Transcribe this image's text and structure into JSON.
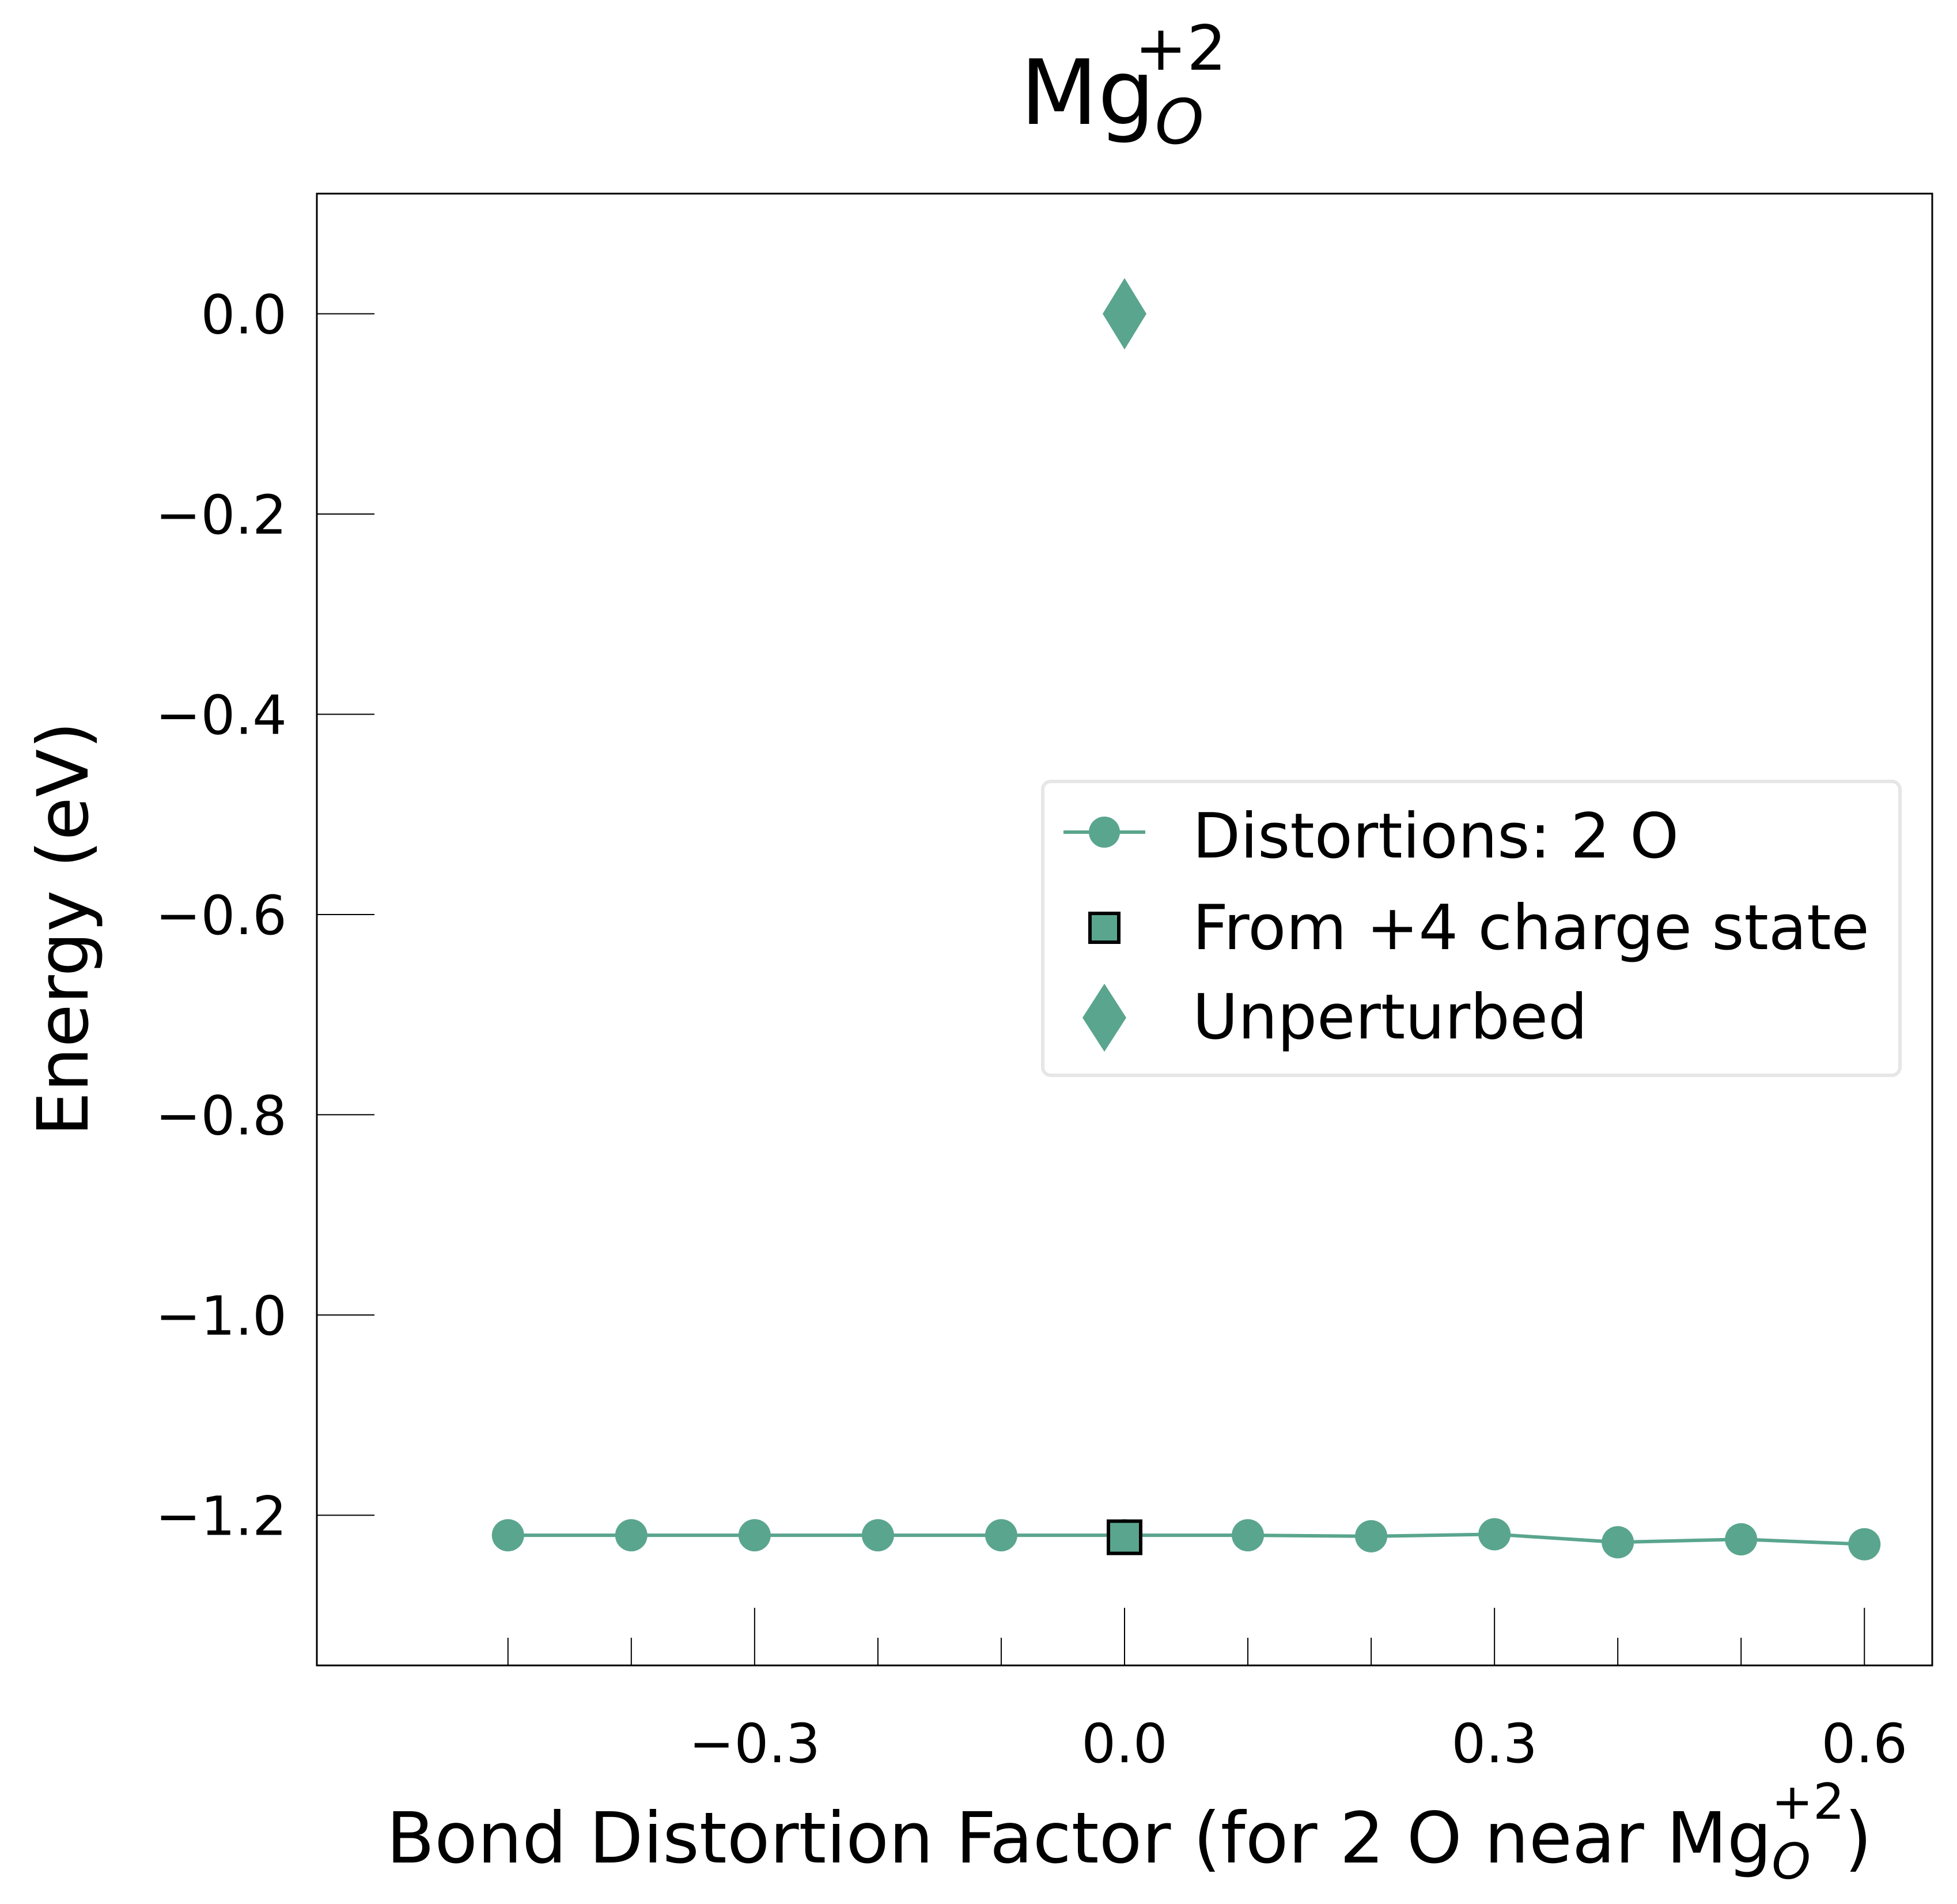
{
  "colors": {
    "series": "#5aa58e",
    "axis": "#000000",
    "legend_border": "#e6e6e6",
    "background": "#ffffff"
  },
  "title": {
    "base": "Mg",
    "sub": "O",
    "sup": "+2"
  },
  "xlabel": {
    "prefix": "Bond Distortion Factor (for 2 O near Mg",
    "sub": "O",
    "sup": "+2",
    "suffix": ")"
  },
  "ylabel": "Energy (eV)",
  "legend": {
    "placement": "center-right",
    "entries": [
      {
        "label": "Distortions: 2 O",
        "marker": "circle-line"
      },
      {
        "label": "From +4 charge state",
        "marker": "square"
      },
      {
        "label": "Unperturbed",
        "marker": "diamond"
      }
    ]
  },
  "chart_data": {
    "type": "line",
    "xlim": [
      -0.655,
      0.655
    ],
    "ylim": [
      -1.35,
      0.12
    ],
    "xticks": [
      -0.3,
      0.0,
      0.3,
      0.6
    ],
    "xtick_labels": [
      "−0.3",
      "0.0",
      "0.3",
      "0.6"
    ],
    "xminor": [
      -0.5,
      -0.4,
      -0.2,
      -0.1,
      0.1,
      0.2,
      0.4,
      0.5
    ],
    "yticks": [
      0.0,
      -0.2,
      -0.4,
      -0.6,
      -0.8,
      -1.0,
      -1.2
    ],
    "ytick_labels": [
      "0.0",
      "−0.2",
      "−0.4",
      "−0.6",
      "−0.8",
      "−1.0",
      "−1.2"
    ],
    "grid": false,
    "series": [
      {
        "name": "Distortions: 2 O",
        "marker": "circle",
        "x": [
          -0.5,
          -0.4,
          -0.3,
          -0.2,
          -0.1,
          0.0,
          0.1,
          0.2,
          0.3,
          0.4,
          0.5,
          0.6
        ],
        "y": [
          -1.22,
          -1.22,
          -1.22,
          -1.22,
          -1.22,
          -1.22,
          -1.22,
          -1.221,
          -1.219,
          -1.227,
          -1.224,
          -1.229
        ]
      },
      {
        "name": "From +4 charge state",
        "marker": "square",
        "x": [
          0.0
        ],
        "y": [
          -1.222
        ]
      },
      {
        "name": "Unperturbed",
        "marker": "diamond",
        "x": [
          0.0
        ],
        "y": [
          0.0
        ]
      }
    ]
  }
}
